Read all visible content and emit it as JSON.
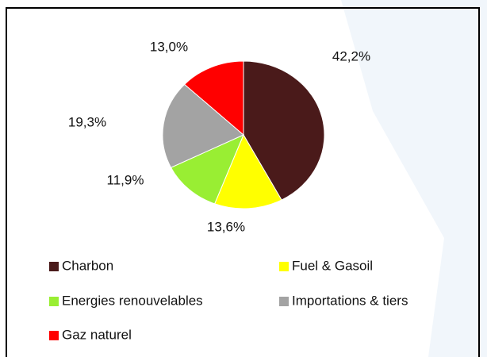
{
  "chart_data": {
    "type": "pie",
    "categories": [
      "Charbon",
      "Fuel & Gasoil",
      "Energies renouvelables",
      "Importations & tiers",
      "Gaz naturel"
    ],
    "values": [
      42.2,
      13.6,
      11.9,
      19.3,
      13.0
    ],
    "value_labels": [
      "42,2%",
      "13,6%",
      "11,9%",
      "19,3%",
      "13,0%"
    ],
    "colors": [
      "#4a1a1a",
      "#ffff00",
      "#99ee33",
      "#a3a3a3",
      "#ff0000"
    ],
    "legend": "bottom"
  }
}
